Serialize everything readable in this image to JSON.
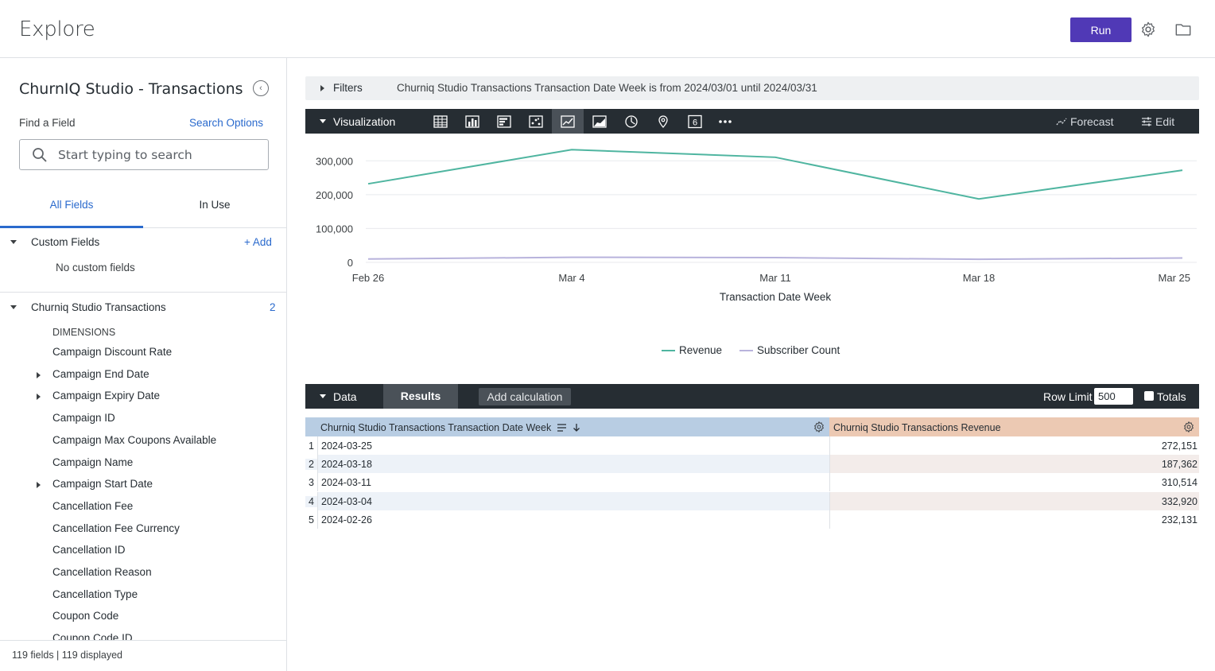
{
  "header": {
    "title": "Explore",
    "run_label": "Run"
  },
  "sidebar": {
    "title": "ChurnIQ Studio - Transactions",
    "find_label": "Find a Field",
    "search_options": "Search Options",
    "search_placeholder": "Start typing to search",
    "tabs": [
      "All Fields",
      "In Use"
    ],
    "custom_fields": {
      "label": "Custom Fields",
      "add": "+ Add",
      "empty": "No custom fields"
    },
    "view": {
      "label": "Churniq Studio Transactions",
      "count": "2",
      "group": "DIMENSIONS"
    },
    "fields": [
      {
        "label": "Campaign Discount Rate",
        "expandable": false
      },
      {
        "label": "Campaign End Date",
        "expandable": true
      },
      {
        "label": "Campaign Expiry Date",
        "expandable": true
      },
      {
        "label": "Campaign ID",
        "expandable": false
      },
      {
        "label": "Campaign Max Coupons Available",
        "expandable": false
      },
      {
        "label": "Campaign Name",
        "expandable": false
      },
      {
        "label": "Campaign Start Date",
        "expandable": true
      },
      {
        "label": "Cancellation Fee",
        "expandable": false
      },
      {
        "label": "Cancellation Fee Currency",
        "expandable": false
      },
      {
        "label": "Cancellation ID",
        "expandable": false
      },
      {
        "label": "Cancellation Reason",
        "expandable": false
      },
      {
        "label": "Cancellation Type",
        "expandable": false
      },
      {
        "label": "Coupon Code",
        "expandable": false
      },
      {
        "label": "Coupon Code ID",
        "expandable": false
      }
    ],
    "footer": "119 fields | 119 displayed"
  },
  "filters": {
    "label": "Filters",
    "summary": "Churniq Studio Transactions Transaction Date Week is from 2024/03/01 until 2024/03/31"
  },
  "visualization": {
    "label": "Visualization",
    "icons": [
      "table-icon",
      "column-chart-icon",
      "bar-chart-icon",
      "scatter-icon",
      "line-chart-icon",
      "area-chart-icon",
      "pie-chart-icon",
      "map-pin-icon",
      "single-value-icon",
      "more-icon"
    ],
    "selected": "line-chart-icon",
    "forecast": "Forecast",
    "edit": "Edit"
  },
  "chart_data": {
    "type": "line",
    "x": [
      "Feb 26",
      "Mar 4",
      "Mar 11",
      "Mar 18",
      "Mar 25"
    ],
    "xlabel": "Transaction Date Week",
    "ylabel": "",
    "yticks": [
      "0",
      "100,000",
      "200,000",
      "300,000"
    ],
    "ylim": [
      0,
      350000
    ],
    "grid": true,
    "legend": "bottom-center",
    "series": [
      {
        "name": "Revenue",
        "color": "#4fb5a0",
        "values": [
          232131,
          332920,
          310514,
          187362,
          272151
        ]
      },
      {
        "name": "Subscriber Count",
        "color": "#b8b3dc",
        "values": [
          10000,
          15000,
          14000,
          9000,
          13000
        ]
      }
    ]
  },
  "data_panel": {
    "label": "Data",
    "results_tab": "Results",
    "add_calc": "Add calculation",
    "row_limit_label": "Row Limit",
    "row_limit": "500",
    "totals_label": "Totals",
    "columns": [
      "Churniq Studio Transactions Transaction Date Week",
      "Churniq Studio Transactions Revenue"
    ],
    "rows": [
      {
        "idx": "1",
        "week": "2024-03-25",
        "revenue": "272,151"
      },
      {
        "idx": "2",
        "week": "2024-03-18",
        "revenue": "187,362"
      },
      {
        "idx": "3",
        "week": "2024-03-11",
        "revenue": "310,514"
      },
      {
        "idx": "4",
        "week": "2024-03-04",
        "revenue": "332,920"
      },
      {
        "idx": "5",
        "week": "2024-02-26",
        "revenue": "232,131"
      }
    ]
  },
  "colors": {
    "accent": "#5039b6",
    "link": "#2a6acd",
    "dark_bar": "#262d33"
  }
}
